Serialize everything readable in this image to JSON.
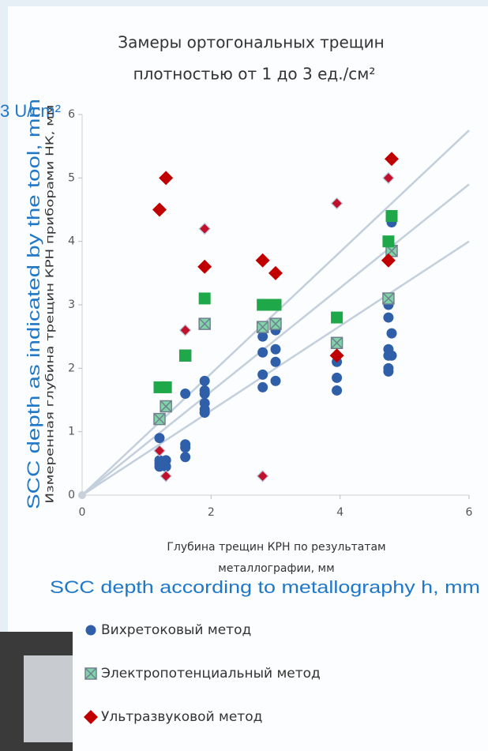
{
  "chart_data": {
    "type": "scatter",
    "title": [
      "Замеры ортогональных трещин",
      "плотностью от 1 до 3 ед./см²"
    ],
    "overlay_density": "3 U/cm²",
    "y_label": "Измеренная глубина трещин КРН приборами НК, мм",
    "y_label_en": "SCC depth as indicated by the tool, mm",
    "x_label": [
      "Глубина трещин КРН по результатам",
      "металлографии, мм"
    ],
    "x_label_en": "SCC depth according to metallography h, mm",
    "xlim": [
      0,
      6
    ],
    "ylim": [
      0,
      6
    ],
    "xticks": [
      0,
      2,
      4,
      6
    ],
    "yticks": [
      0,
      1,
      2,
      3,
      4,
      5,
      6
    ],
    "grid": false,
    "reference_lines": {
      "color": "#c3cfdc",
      "lines": [
        {
          "x": [
            0,
            6
          ],
          "y": [
            0,
            5.75
          ]
        },
        {
          "x": [
            0,
            6
          ],
          "y": [
            0,
            4.9
          ]
        },
        {
          "x": [
            0,
            6
          ],
          "y": [
            0,
            4.0
          ]
        }
      ]
    },
    "series": [
      {
        "name": "Вихретоковый метод",
        "color": "#2e5fa8",
        "marker": "circle",
        "x": [
          1.2,
          1.2,
          1.2,
          1.2,
          1.3,
          1.3,
          1.6,
          1.6,
          1.6,
          1.6,
          1.9,
          1.9,
          1.9,
          1.9,
          1.9,
          1.9,
          2.8,
          2.8,
          2.8,
          2.8,
          2.8,
          3.0,
          3.0,
          3.0,
          3.0,
          3.95,
          3.95,
          3.95,
          4.8,
          4.75,
          4.75,
          4.8,
          4.75,
          4.75,
          4.8,
          4.75,
          4.75
        ],
        "values": [
          0.9,
          0.55,
          0.5,
          0.45,
          0.55,
          0.45,
          0.8,
          0.75,
          0.6,
          1.6,
          1.8,
          1.65,
          1.6,
          1.45,
          1.35,
          1.3,
          2.65,
          2.5,
          2.25,
          1.9,
          1.7,
          2.6,
          2.3,
          2.1,
          1.8,
          2.1,
          1.85,
          1.65,
          4.3,
          3.0,
          2.8,
          2.55,
          2.3,
          2.2,
          2.2,
          2.0,
          1.95
        ]
      },
      {
        "name": "Электропотенциальный метод",
        "color": "#7fd4a8",
        "marker": "square-x",
        "x": [
          1.2,
          1.3,
          1.6,
          1.9,
          2.8,
          3.0,
          3.95,
          4.75,
          4.8
        ],
        "values": [
          1.2,
          1.4,
          2.2,
          2.7,
          2.65,
          2.7,
          2.4,
          3.1,
          3.85
        ]
      },
      {
        "name": "Ультразвуковой метод",
        "color": "#c00000",
        "marker": "diamond",
        "x": [
          1.2,
          1.3,
          1.9,
          2.8,
          3.0,
          3.95,
          4.75,
          4.8
        ],
        "values": [
          4.5,
          5.0,
          3.6,
          3.7,
          3.5,
          2.2,
          3.7,
          5.3
        ]
      },
      {
        "color": "#1fa84a",
        "marker": "square",
        "x": [
          1.2,
          1.3,
          1.6,
          1.9,
          2.8,
          2.9,
          3.0,
          3.95,
          4.75,
          4.8
        ],
        "values": [
          1.7,
          1.7,
          2.2,
          3.1,
          3.0,
          3.0,
          3.0,
          2.8,
          4.0,
          4.4
        ]
      },
      {
        "color": "#c0102a",
        "marker": "diamond-small",
        "x": [
          1.2,
          1.3,
          1.6,
          1.9,
          2.8,
          3.95,
          4.75
        ],
        "values": [
          0.7,
          0.3,
          2.6,
          4.2,
          0.3,
          4.6,
          5.0
        ]
      }
    ]
  }
}
